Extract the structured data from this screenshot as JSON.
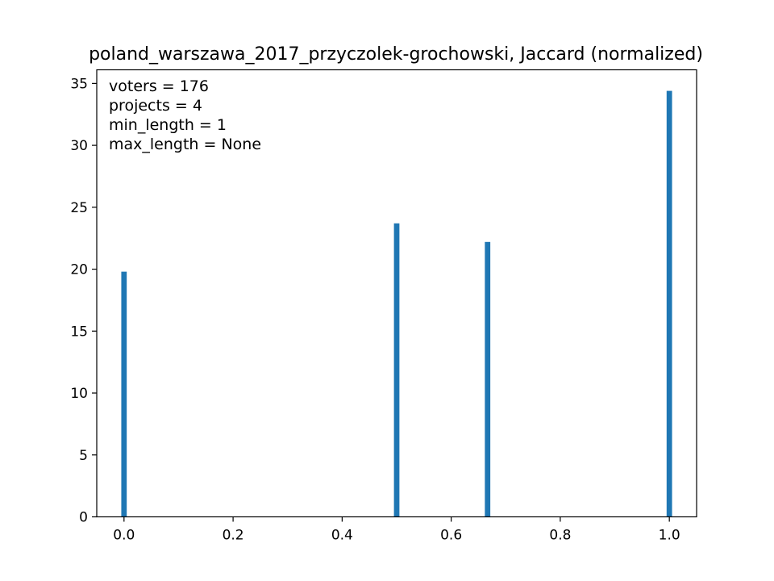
{
  "chart_data": {
    "type": "bar",
    "title": "poland_warszawa_2017_przyczolek-grochowski, Jaccard (normalized)",
    "xlabel": "",
    "ylabel": "",
    "x": [
      0.0,
      0.5,
      0.6667,
      1.0
    ],
    "values": [
      19.8,
      23.7,
      22.2,
      34.4
    ],
    "xlim": [
      -0.05,
      1.05
    ],
    "ylim": [
      0,
      36.1
    ],
    "xticks": [
      0.0,
      0.2,
      0.4,
      0.6,
      0.8,
      1.0
    ],
    "xtick_labels": [
      "0.0",
      "0.2",
      "0.4",
      "0.6",
      "0.8",
      "1.0"
    ],
    "yticks": [
      0,
      5,
      10,
      15,
      20,
      25,
      30,
      35
    ],
    "ytick_labels": [
      "0",
      "5",
      "10",
      "15",
      "20",
      "25",
      "30",
      "35"
    ],
    "bar_width_data": 0.01,
    "grid": false,
    "legend": "none",
    "bar_color": "#1f77b4",
    "annotations": [
      "voters = 176",
      "projects = 4",
      "min_length = 1",
      "max_length = None"
    ]
  }
}
